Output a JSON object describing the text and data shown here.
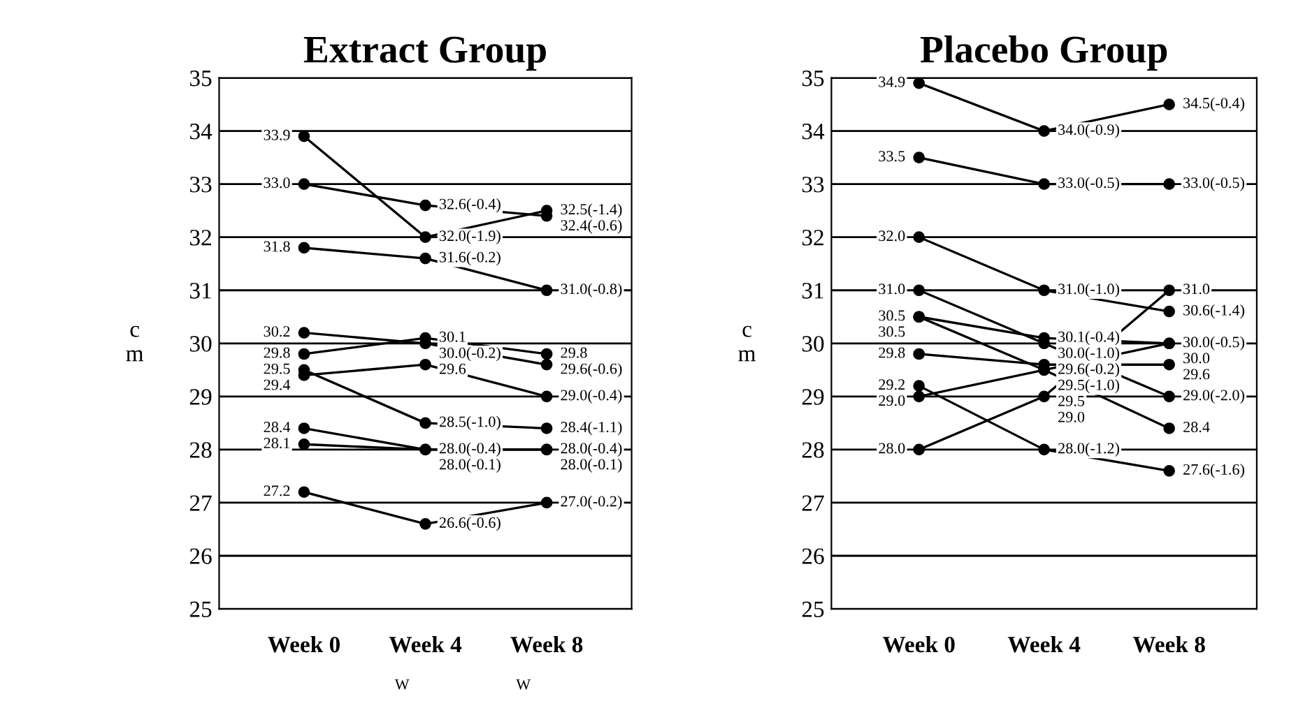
{
  "chart_data": [
    {
      "type": "line",
      "title": "Extract Group",
      "ylabel": "cm",
      "categories": [
        "Week 0",
        "Week 4",
        "Week 8"
      ],
      "ylim": [
        25,
        35
      ],
      "yticks": [
        25,
        26,
        27,
        28,
        29,
        30,
        31,
        32,
        33,
        34,
        35
      ],
      "grid": "y",
      "marker": "circle",
      "line_style": "solid",
      "annotations": [
        "W",
        "W"
      ],
      "series": [
        {
          "color": "#000000",
          "values": [
            33.9,
            32.0,
            32.5
          ],
          "value_labels": [
            "33.9",
            "32.0(-1.9)",
            "32.5(-1.4)"
          ]
        },
        {
          "color": "#000000",
          "values": [
            33.0,
            32.6,
            32.4
          ],
          "value_labels": [
            "33.0",
            "32.6(-0.4)",
            "32.4(-0.6)"
          ]
        },
        {
          "color": "#000000",
          "values": [
            31.8,
            31.6,
            31.0
          ],
          "value_labels": [
            "31.8",
            "31.6(-0.2)",
            "31.0(-0.8)"
          ]
        },
        {
          "color": "#000000",
          "values": [
            30.2,
            30.0,
            29.6
          ],
          "value_labels": [
            "30.2",
            "30.0(-0.2)",
            "29.6(-0.6)"
          ]
        },
        {
          "color": "#000000",
          "values": [
            29.8,
            30.1,
            29.8
          ],
          "value_labels": [
            "29.8",
            "30.1",
            "29.8"
          ]
        },
        {
          "color": "#000000",
          "values": [
            29.4,
            29.6,
            29.0
          ],
          "value_labels": [
            "29.4",
            "29.6",
            "29.0(-0.4)"
          ]
        },
        {
          "color": "#000000",
          "values": [
            29.5,
            28.5,
            28.4
          ],
          "value_labels": [
            "29.5",
            "28.5(-1.0)",
            "28.4(-1.1)"
          ]
        },
        {
          "color": "#000000",
          "values": [
            28.4,
            28.0,
            28.0
          ],
          "value_labels": [
            "28.4",
            "28.0(-0.4)",
            "28.0(-0.4)"
          ]
        },
        {
          "color": "#000000",
          "values": [
            28.1,
            28.0,
            28.0
          ],
          "value_labels": [
            "28.1",
            "28.0(-0.1)",
            "28.0(-0.1)"
          ]
        },
        {
          "color": "#000000",
          "values": [
            27.2,
            26.6,
            27.0
          ],
          "value_labels": [
            "27.2",
            "26.6(-0.6)",
            "27.0(-0.2)"
          ]
        }
      ]
    },
    {
      "type": "line",
      "title": "Placebo Group",
      "ylabel": "cm",
      "categories": [
        "Week 0",
        "Week 4",
        "Week 8"
      ],
      "ylim": [
        25,
        35
      ],
      "yticks": [
        25,
        26,
        27,
        28,
        29,
        30,
        31,
        32,
        33,
        34,
        35
      ],
      "grid": "y",
      "marker": "circle",
      "line_style": "solid",
      "series": [
        {
          "color": "#000000",
          "values": [
            34.9,
            34.0,
            34.5
          ],
          "value_labels": [
            "34.9",
            "34.0(-0.9)",
            "34.5(-0.4)"
          ]
        },
        {
          "color": "#000000",
          "values": [
            33.5,
            33.0,
            33.0
          ],
          "value_labels": [
            "33.5",
            "33.0(-0.5)",
            "33.0(-0.5)"
          ]
        },
        {
          "color": "#000000",
          "values": [
            32.0,
            31.0,
            30.6
          ],
          "value_labels": [
            "32.0",
            "31.0(-1.0)",
            "30.6(-1.4)"
          ]
        },
        {
          "color": "#000000",
          "values": [
            31.0,
            30.0,
            29.0
          ],
          "value_labels": [
            "31.0",
            "30.0(-1.0)",
            "29.0(-2.0)"
          ]
        },
        {
          "color": "#000000",
          "values": [
            30.5,
            30.1,
            30.0
          ],
          "value_labels": [
            "30.5",
            "30.1(-0.4)",
            "30.0(-0.5)"
          ]
        },
        {
          "color": "#000000",
          "values": [
            30.5,
            29.5,
            28.4
          ],
          "value_labels": [
            "30.5",
            "29.5(-1.0)",
            "28.4"
          ]
        },
        {
          "color": "#000000",
          "values": [
            28.0,
            29.0,
            31.0
          ],
          "value_labels": [
            "28.0",
            "29.0",
            "31.0"
          ]
        },
        {
          "color": "#000000",
          "values": [
            29.0,
            29.5,
            30.0
          ],
          "value_labels": [
            "29.0",
            "29.5",
            "30.0"
          ]
        },
        {
          "color": "#000000",
          "values": [
            29.8,
            29.6,
            29.6
          ],
          "value_labels": [
            "29.8",
            "29.6(-0.2)",
            "29.6"
          ]
        },
        {
          "color": "#000000",
          "values": [
            29.2,
            28.0,
            27.6
          ],
          "value_labels": [
            "29.2",
            "28.0(-1.2)",
            "27.6(-1.6)"
          ]
        }
      ]
    }
  ]
}
